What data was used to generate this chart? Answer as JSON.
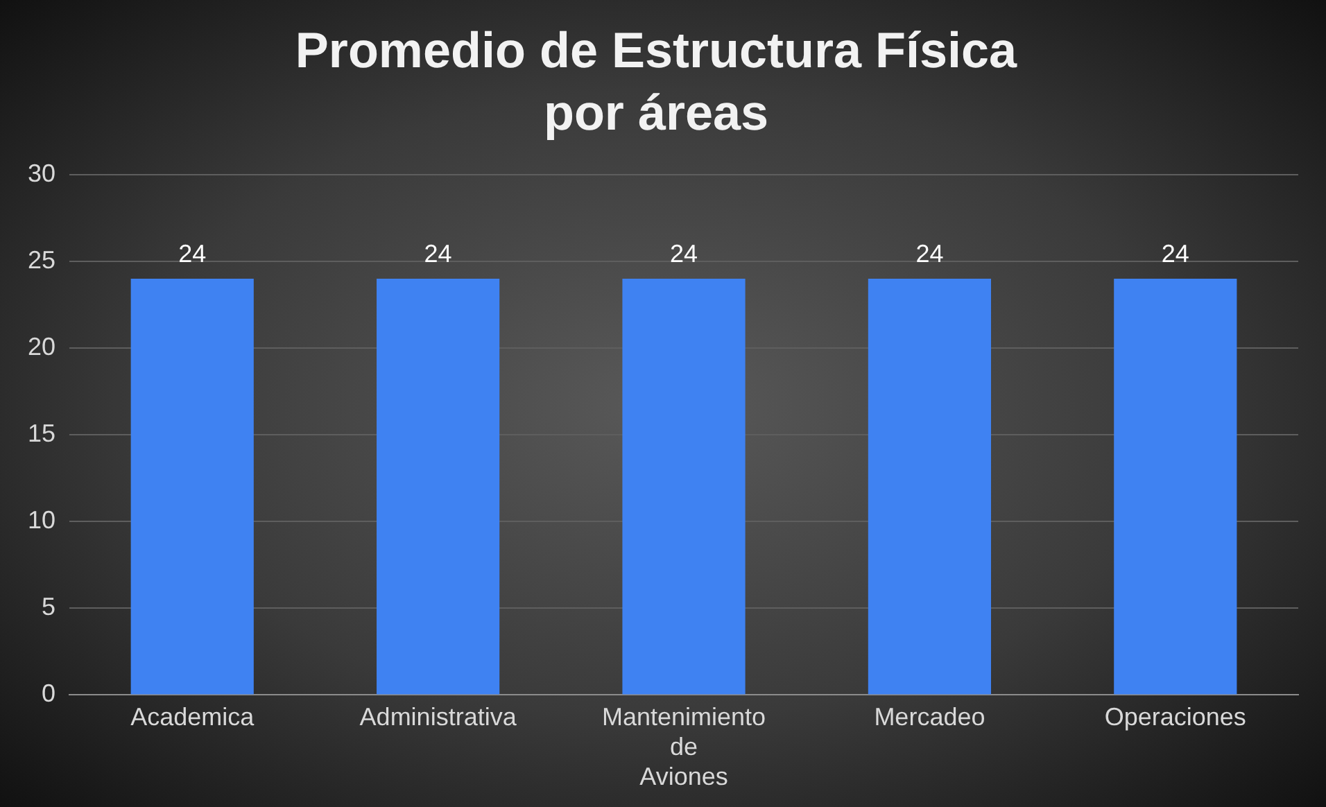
{
  "chart_data": {
    "type": "bar",
    "title": "Promedio de Estructura Física por áreas",
    "categories": [
      "Academica",
      "Administrativa",
      "Mantenimiento de Aviones",
      "Mercadeo",
      "Operaciones"
    ],
    "values": [
      24,
      24,
      24,
      24,
      24
    ],
    "color": "#3f82f2",
    "ylim": [
      0,
      30
    ],
    "yticks": [
      0,
      5,
      10,
      15,
      20,
      25,
      30
    ],
    "grid": "y",
    "data_labels": true
  }
}
